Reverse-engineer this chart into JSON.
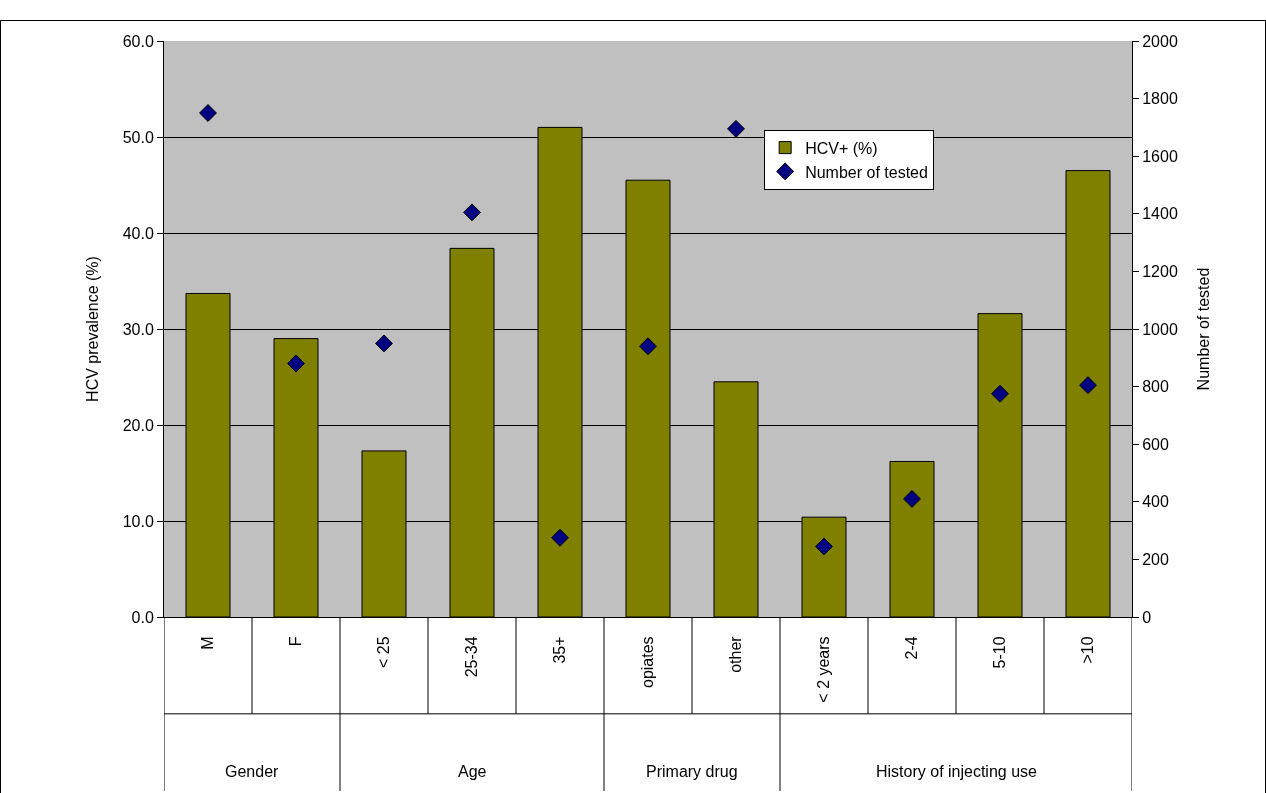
{
  "chart_data": {
    "type": "bar",
    "xlabel": null,
    "ylabel": "HCV prevalence (%)",
    "y2label": "Number of tested",
    "categories": [
      "M",
      "F",
      "< 25",
      "25-34",
      "35+",
      "opiates",
      "other",
      "< 2 years",
      "2-4",
      "5-10",
      ">10"
    ],
    "series": [
      {
        "name": "HCV+ (%)",
        "color": "#808000",
        "values": [
          33.7,
          29.0,
          17.3,
          38.4,
          51.0,
          45.5,
          24.5,
          10.4,
          16.2,
          31.6,
          46.5
        ]
      },
      {
        "name": "Number of tested",
        "type": "scatter",
        "axis": "y2",
        "color": "#000080",
        "marker": "diamond",
        "values": [
          1750,
          880,
          950,
          1405,
          275,
          940,
          1695,
          245,
          410,
          775,
          805
        ]
      }
    ],
    "annotations": [
      "Gender",
      "Age",
      "Primary drug",
      "History of injecting use"
    ],
    "ylim": [
      0,
      60
    ],
    "yticks": [
      {
        "value": 0,
        "label": "0.0"
      },
      {
        "value": 10,
        "label": "10.0"
      },
      {
        "value": 20,
        "label": "20.0"
      },
      {
        "value": 30,
        "label": "30.0"
      },
      {
        "value": 40,
        "label": "40.0"
      },
      {
        "value": 50,
        "label": "50.0"
      },
      {
        "value": 60,
        "label": "60.0"
      }
    ],
    "y2lim": [
      0,
      2000
    ],
    "y2ticks": [
      0,
      200,
      400,
      600,
      800,
      1000,
      1200,
      1400,
      1600,
      1800,
      2000
    ],
    "grid": "y",
    "legend": "top right"
  }
}
